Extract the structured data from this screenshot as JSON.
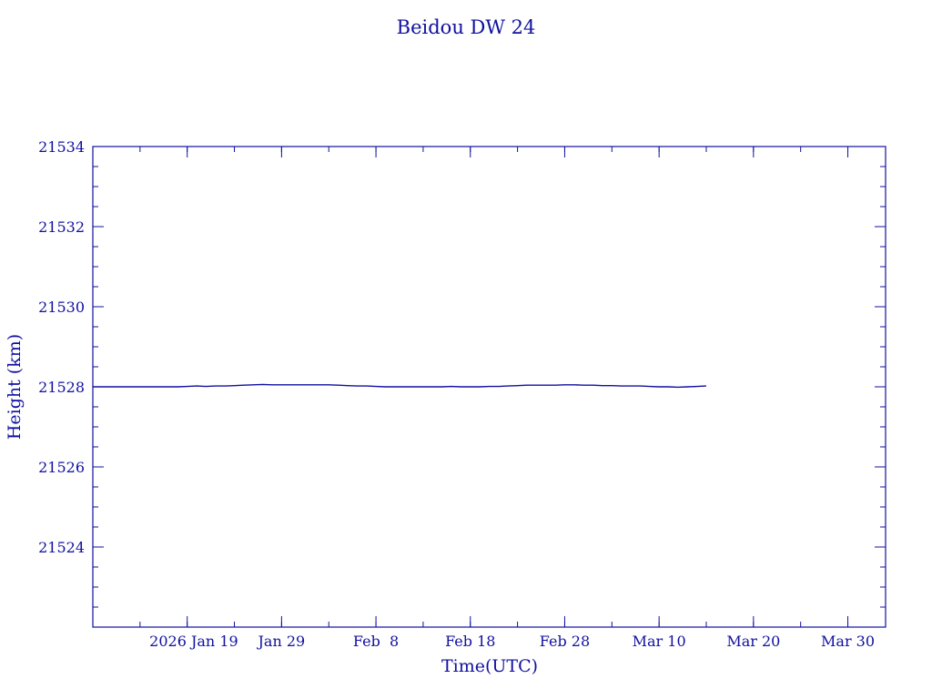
{
  "chart_data": {
    "type": "line",
    "title": "Beidou DW 24",
    "xlabel": "Time(UTC)",
    "ylabel": "Height (km)",
    "color": "#1010a0",
    "x_ticks": [
      {
        "label": "2026 Jan 19",
        "date": "2026-01-19"
      },
      {
        "label": "Jan 29",
        "date": "2026-01-29"
      },
      {
        "label": "Feb  8",
        "date": "2026-02-08"
      },
      {
        "label": "Feb 18",
        "date": "2026-02-18"
      },
      {
        "label": "Feb 28",
        "date": "2026-02-28"
      },
      {
        "label": "Mar 10",
        "date": "2026-03-10"
      },
      {
        "label": "Mar 20",
        "date": "2026-03-20"
      },
      {
        "label": "Mar 30",
        "date": "2026-03-30"
      }
    ],
    "xlim": [
      "2026-01-09",
      "2026-03-34"
    ],
    "y_ticks": [
      21524,
      21526,
      21528,
      21530,
      21532,
      21534
    ],
    "ylim": [
      21522,
      21534
    ],
    "grid": false,
    "series": [
      {
        "x": [
          "2026-01-09",
          "2026-01-10",
          "2026-01-11",
          "2026-01-12",
          "2026-01-13",
          "2026-01-14",
          "2026-01-15",
          "2026-01-16",
          "2026-01-17",
          "2026-01-18",
          "2026-01-19",
          "2026-01-20",
          "2026-01-21",
          "2026-01-22",
          "2026-01-23",
          "2026-01-24",
          "2026-01-25",
          "2026-01-26",
          "2026-01-27",
          "2026-01-28",
          "2026-01-29",
          "2026-01-30",
          "2026-01-31",
          "2026-02-01",
          "2026-02-02",
          "2026-02-03",
          "2026-02-04",
          "2026-02-05",
          "2026-02-06",
          "2026-02-07",
          "2026-02-08",
          "2026-02-09",
          "2026-02-10",
          "2026-02-11",
          "2026-02-12",
          "2026-02-13",
          "2026-02-14",
          "2026-02-15",
          "2026-02-16",
          "2026-02-17",
          "2026-02-18",
          "2026-02-19",
          "2026-02-20",
          "2026-02-21",
          "2026-02-22",
          "2026-02-23",
          "2026-02-24",
          "2026-02-25",
          "2026-02-26",
          "2026-02-27",
          "2026-02-28",
          "2026-03-01",
          "2026-03-02",
          "2026-03-03",
          "2026-03-04",
          "2026-03-05",
          "2026-03-06",
          "2026-03-07",
          "2026-03-08",
          "2026-03-09",
          "2026-03-10",
          "2026-03-11",
          "2026-03-12",
          "2026-03-13",
          "2026-03-14",
          "2026-03-15"
        ],
        "y": [
          21528.0,
          21528.0,
          21528.0,
          21528.0,
          21528.0,
          21528.0,
          21528.0,
          21528.0,
          21528.0,
          21528.0,
          21528.01,
          21528.02,
          21528.01,
          21528.02,
          21528.02,
          21528.03,
          21528.04,
          21528.05,
          21528.06,
          21528.05,
          21528.05,
          21528.05,
          21528.05,
          21528.05,
          21528.05,
          21528.05,
          21528.04,
          21528.03,
          21528.02,
          21528.02,
          21528.01,
          21528.0,
          21528.0,
          21528.0,
          21528.0,
          21528.0,
          21528.0,
          21528.0,
          21528.01,
          21528.0,
          21528.0,
          21528.0,
          21528.01,
          21528.01,
          21528.02,
          21528.03,
          21528.04,
          21528.04,
          21528.04,
          21528.04,
          21528.05,
          21528.05,
          21528.04,
          21528.04,
          21528.03,
          21528.03,
          21528.02,
          21528.02,
          21528.02,
          21528.01,
          21528.0,
          21528.0,
          21527.99,
          21528.0,
          21528.01,
          21528.02
        ]
      }
    ]
  }
}
